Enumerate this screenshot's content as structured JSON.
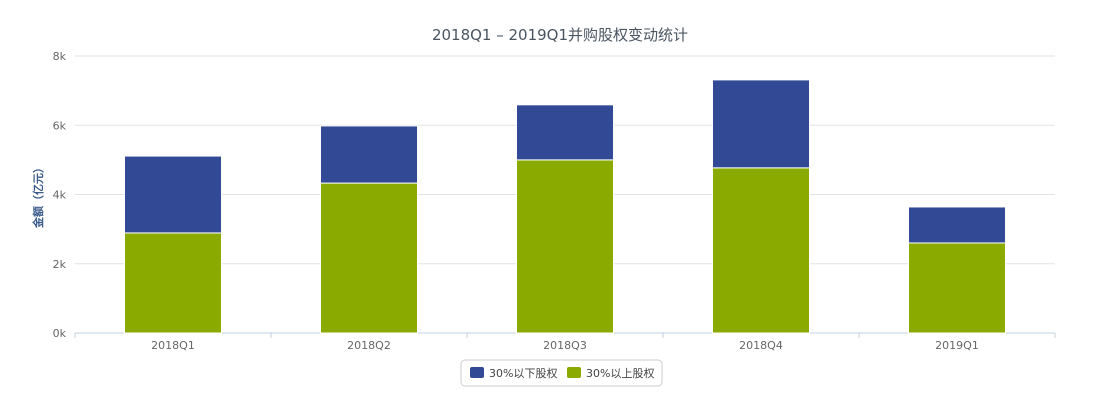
{
  "chart_data": {
    "type": "bar",
    "stacked": true,
    "title": "2018Q1 – 2019Q1并购股权变动统计",
    "xlabel": "",
    "ylabel": "金额（亿元）",
    "ylim": [
      0,
      8000
    ],
    "yticks": [
      0,
      2000,
      4000,
      6000,
      8000
    ],
    "ytick_labels": [
      "0k",
      "2k",
      "4k",
      "6k",
      "8k"
    ],
    "grid": true,
    "legend_position": "bottom",
    "categories": [
      "2018Q1",
      "2018Q2",
      "2018Q3",
      "2018Q4",
      "2019Q1"
    ],
    "series": [
      {
        "name": "30%以上股权",
        "color": "#8aaa00",
        "values": [
          2890,
          4330,
          5000,
          4770,
          2600
        ]
      },
      {
        "name": "30%以下股权",
        "color": "#324a96",
        "values": [
          2220,
          1650,
          1590,
          2540,
          1040
        ]
      }
    ],
    "legend_order": [
      1,
      0
    ]
  }
}
